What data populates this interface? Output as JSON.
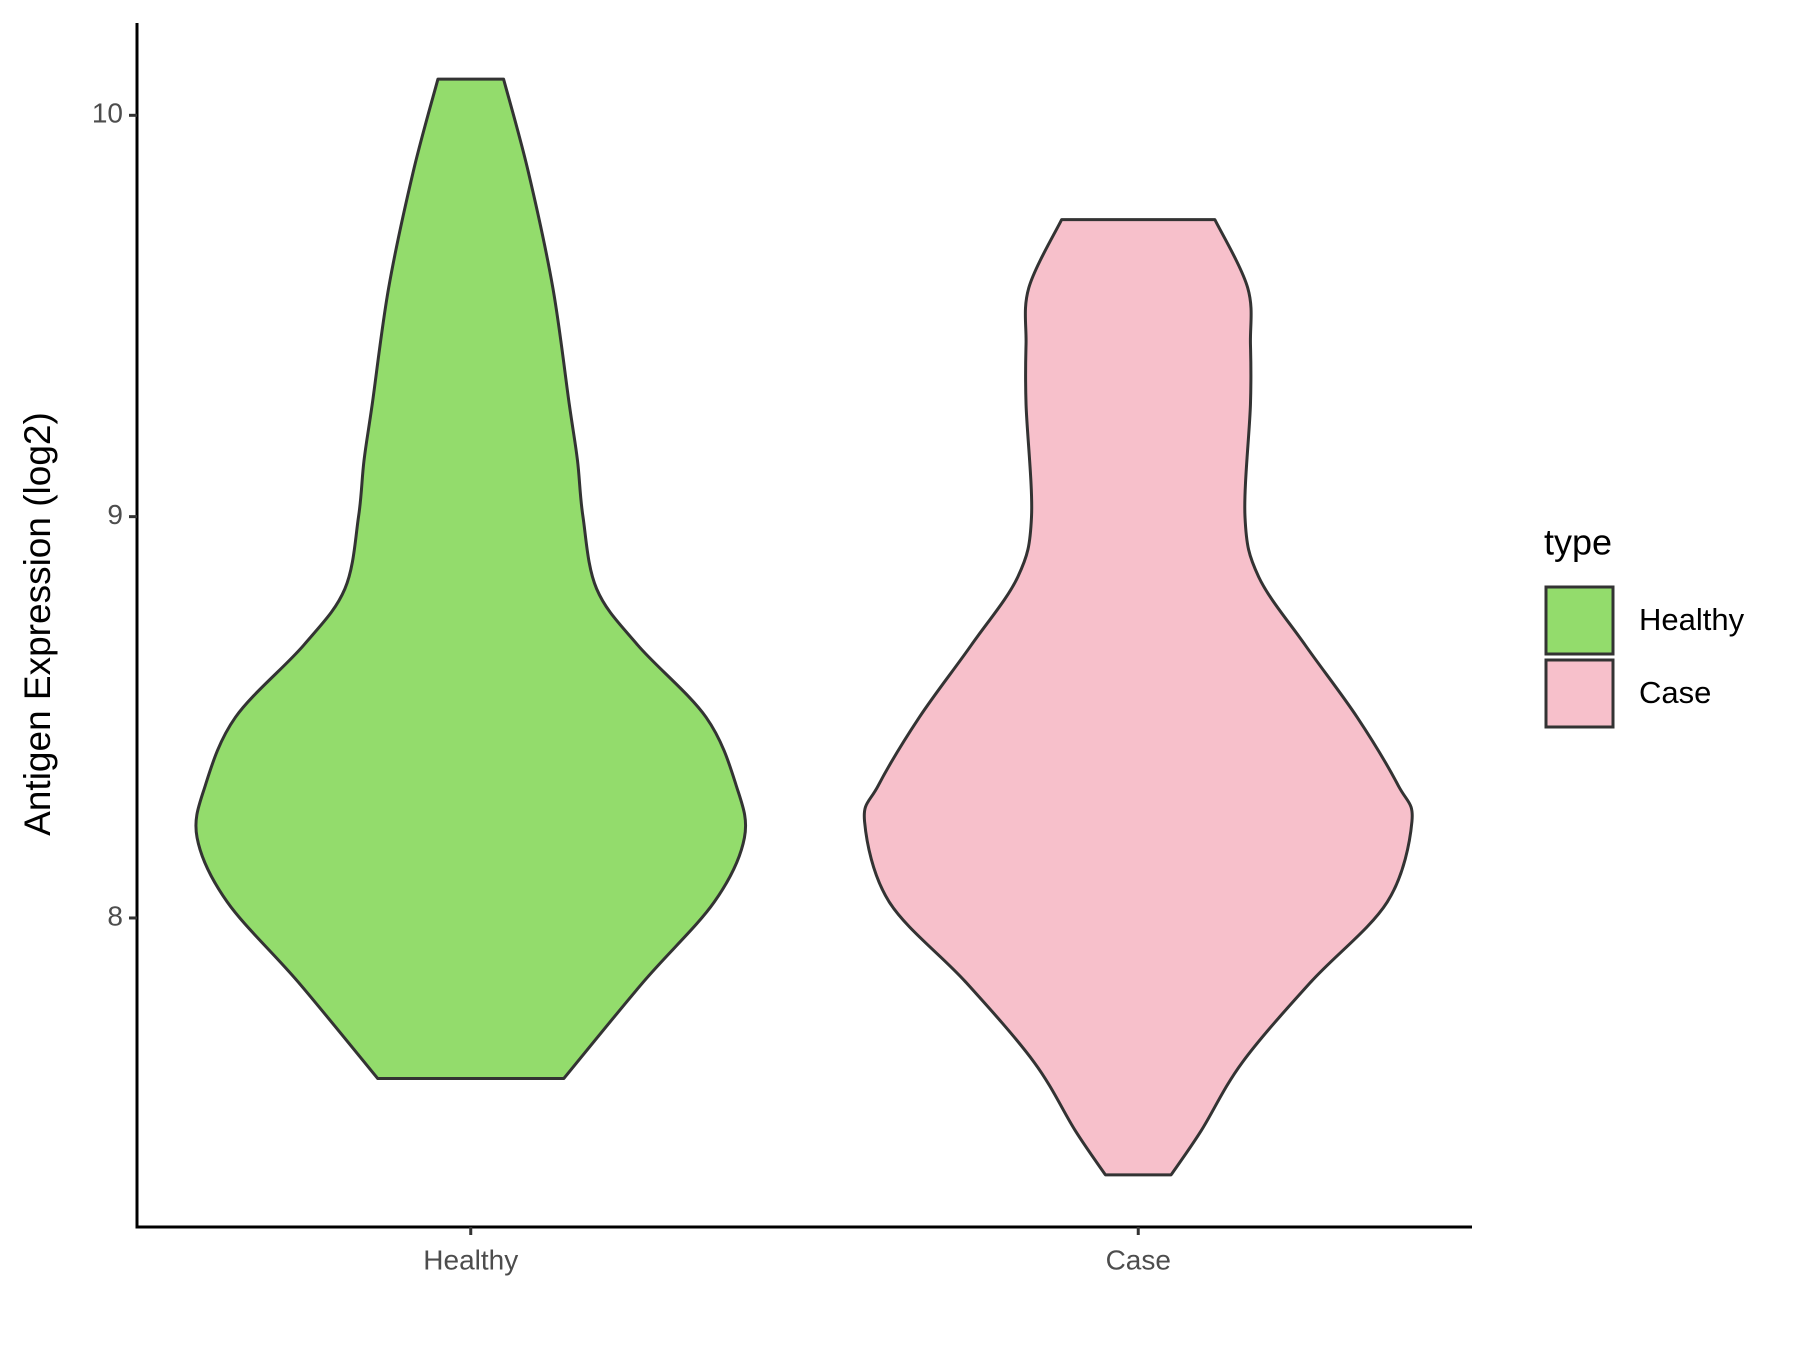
{
  "chart_data": {
    "type": "violin",
    "y_label": "Antigen Expression (log2)",
    "categories": [
      "Healthy",
      "Case"
    ],
    "legend_title": "type",
    "legend": "right",
    "ylim": [
      7.23,
      10.23
    ],
    "yticks": [
      8,
      9,
      10
    ],
    "series": [
      {
        "name": "Healthy",
        "color": "#93dc6c",
        "y": [
          10.09,
          9.86,
          9.57,
          9.28,
          9.14,
          9.0,
          8.82,
          8.68,
          8.5,
          8.33,
          8.2,
          8.04,
          7.84,
          7.6
        ],
        "density": [
          0.12,
          0.21,
          0.3,
          0.36,
          0.39,
          0.41,
          0.46,
          0.61,
          0.86,
          0.97,
          1.0,
          0.89,
          0.63,
          0.34
        ]
      },
      {
        "name": "Case",
        "color": "#f7c0cb",
        "y": [
          9.74,
          9.57,
          9.43,
          9.28,
          9.0,
          8.85,
          8.68,
          8.5,
          8.33,
          8.24,
          8.04,
          7.84,
          7.64,
          7.47,
          7.36
        ],
        "density": [
          0.28,
          0.4,
          0.41,
          0.41,
          0.39,
          0.44,
          0.61,
          0.8,
          0.95,
          1.0,
          0.91,
          0.63,
          0.38,
          0.23,
          0.12
        ]
      }
    ]
  }
}
